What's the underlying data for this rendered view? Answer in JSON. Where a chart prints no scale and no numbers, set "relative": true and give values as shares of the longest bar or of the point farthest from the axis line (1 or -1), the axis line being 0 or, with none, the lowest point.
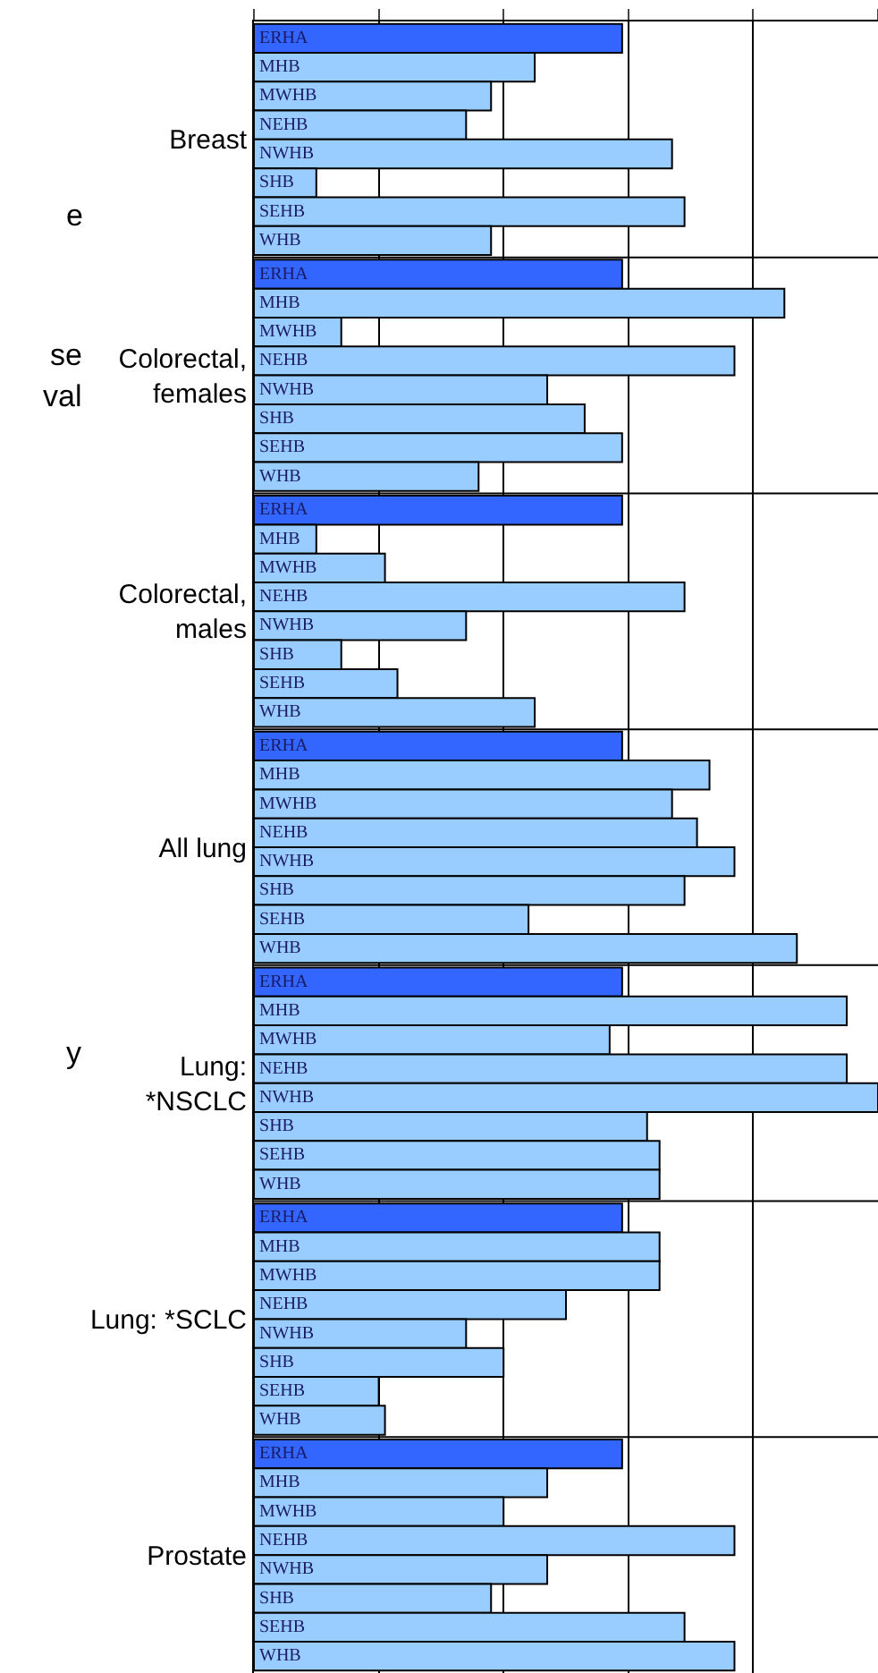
{
  "chart_data": {
    "type": "bar",
    "orientation": "horizontal",
    "relative": true,
    "grid": "x",
    "legend": false,
    "categories": [
      "Breast",
      "Colorectal,\nfemales",
      "Colorectal,\nmales",
      "All lung",
      "Lung:\n*NSCLC",
      "Lung: *SCLC",
      "Prostate"
    ],
    "series": [
      {
        "name": "ERHA",
        "color": "#3366ff",
        "values": [
          0.59,
          0.59,
          0.59,
          0.59,
          0.59,
          0.59,
          0.59
        ]
      },
      {
        "name": "MHB",
        "color": "#99ccff",
        "values": [
          0.45,
          0.85,
          0.1,
          0.73,
          0.95,
          0.65,
          0.47
        ]
      },
      {
        "name": "MWHB",
        "color": "#99ccff",
        "values": [
          0.38,
          0.14,
          0.21,
          0.67,
          0.57,
          0.65,
          0.4
        ]
      },
      {
        "name": "NEHB",
        "color": "#99ccff",
        "values": [
          0.34,
          0.77,
          0.69,
          0.71,
          0.95,
          0.5,
          0.77
        ]
      },
      {
        "name": "NWHB",
        "color": "#99ccff",
        "values": [
          0.67,
          0.47,
          0.34,
          0.77,
          1.0,
          0.34,
          0.47
        ]
      },
      {
        "name": "SHB",
        "color": "#99ccff",
        "values": [
          0.1,
          0.53,
          0.14,
          0.69,
          0.63,
          0.4,
          0.38
        ]
      },
      {
        "name": "SEHB",
        "color": "#99ccff",
        "values": [
          0.69,
          0.59,
          0.23,
          0.44,
          0.65,
          0.2,
          0.69
        ]
      },
      {
        "name": "WHB",
        "color": "#99ccff",
        "values": [
          0.38,
          0.36,
          0.45,
          0.87,
          0.65,
          0.21,
          0.77
        ]
      }
    ],
    "annotations": [
      "e",
      "se",
      "val",
      "y"
    ]
  }
}
